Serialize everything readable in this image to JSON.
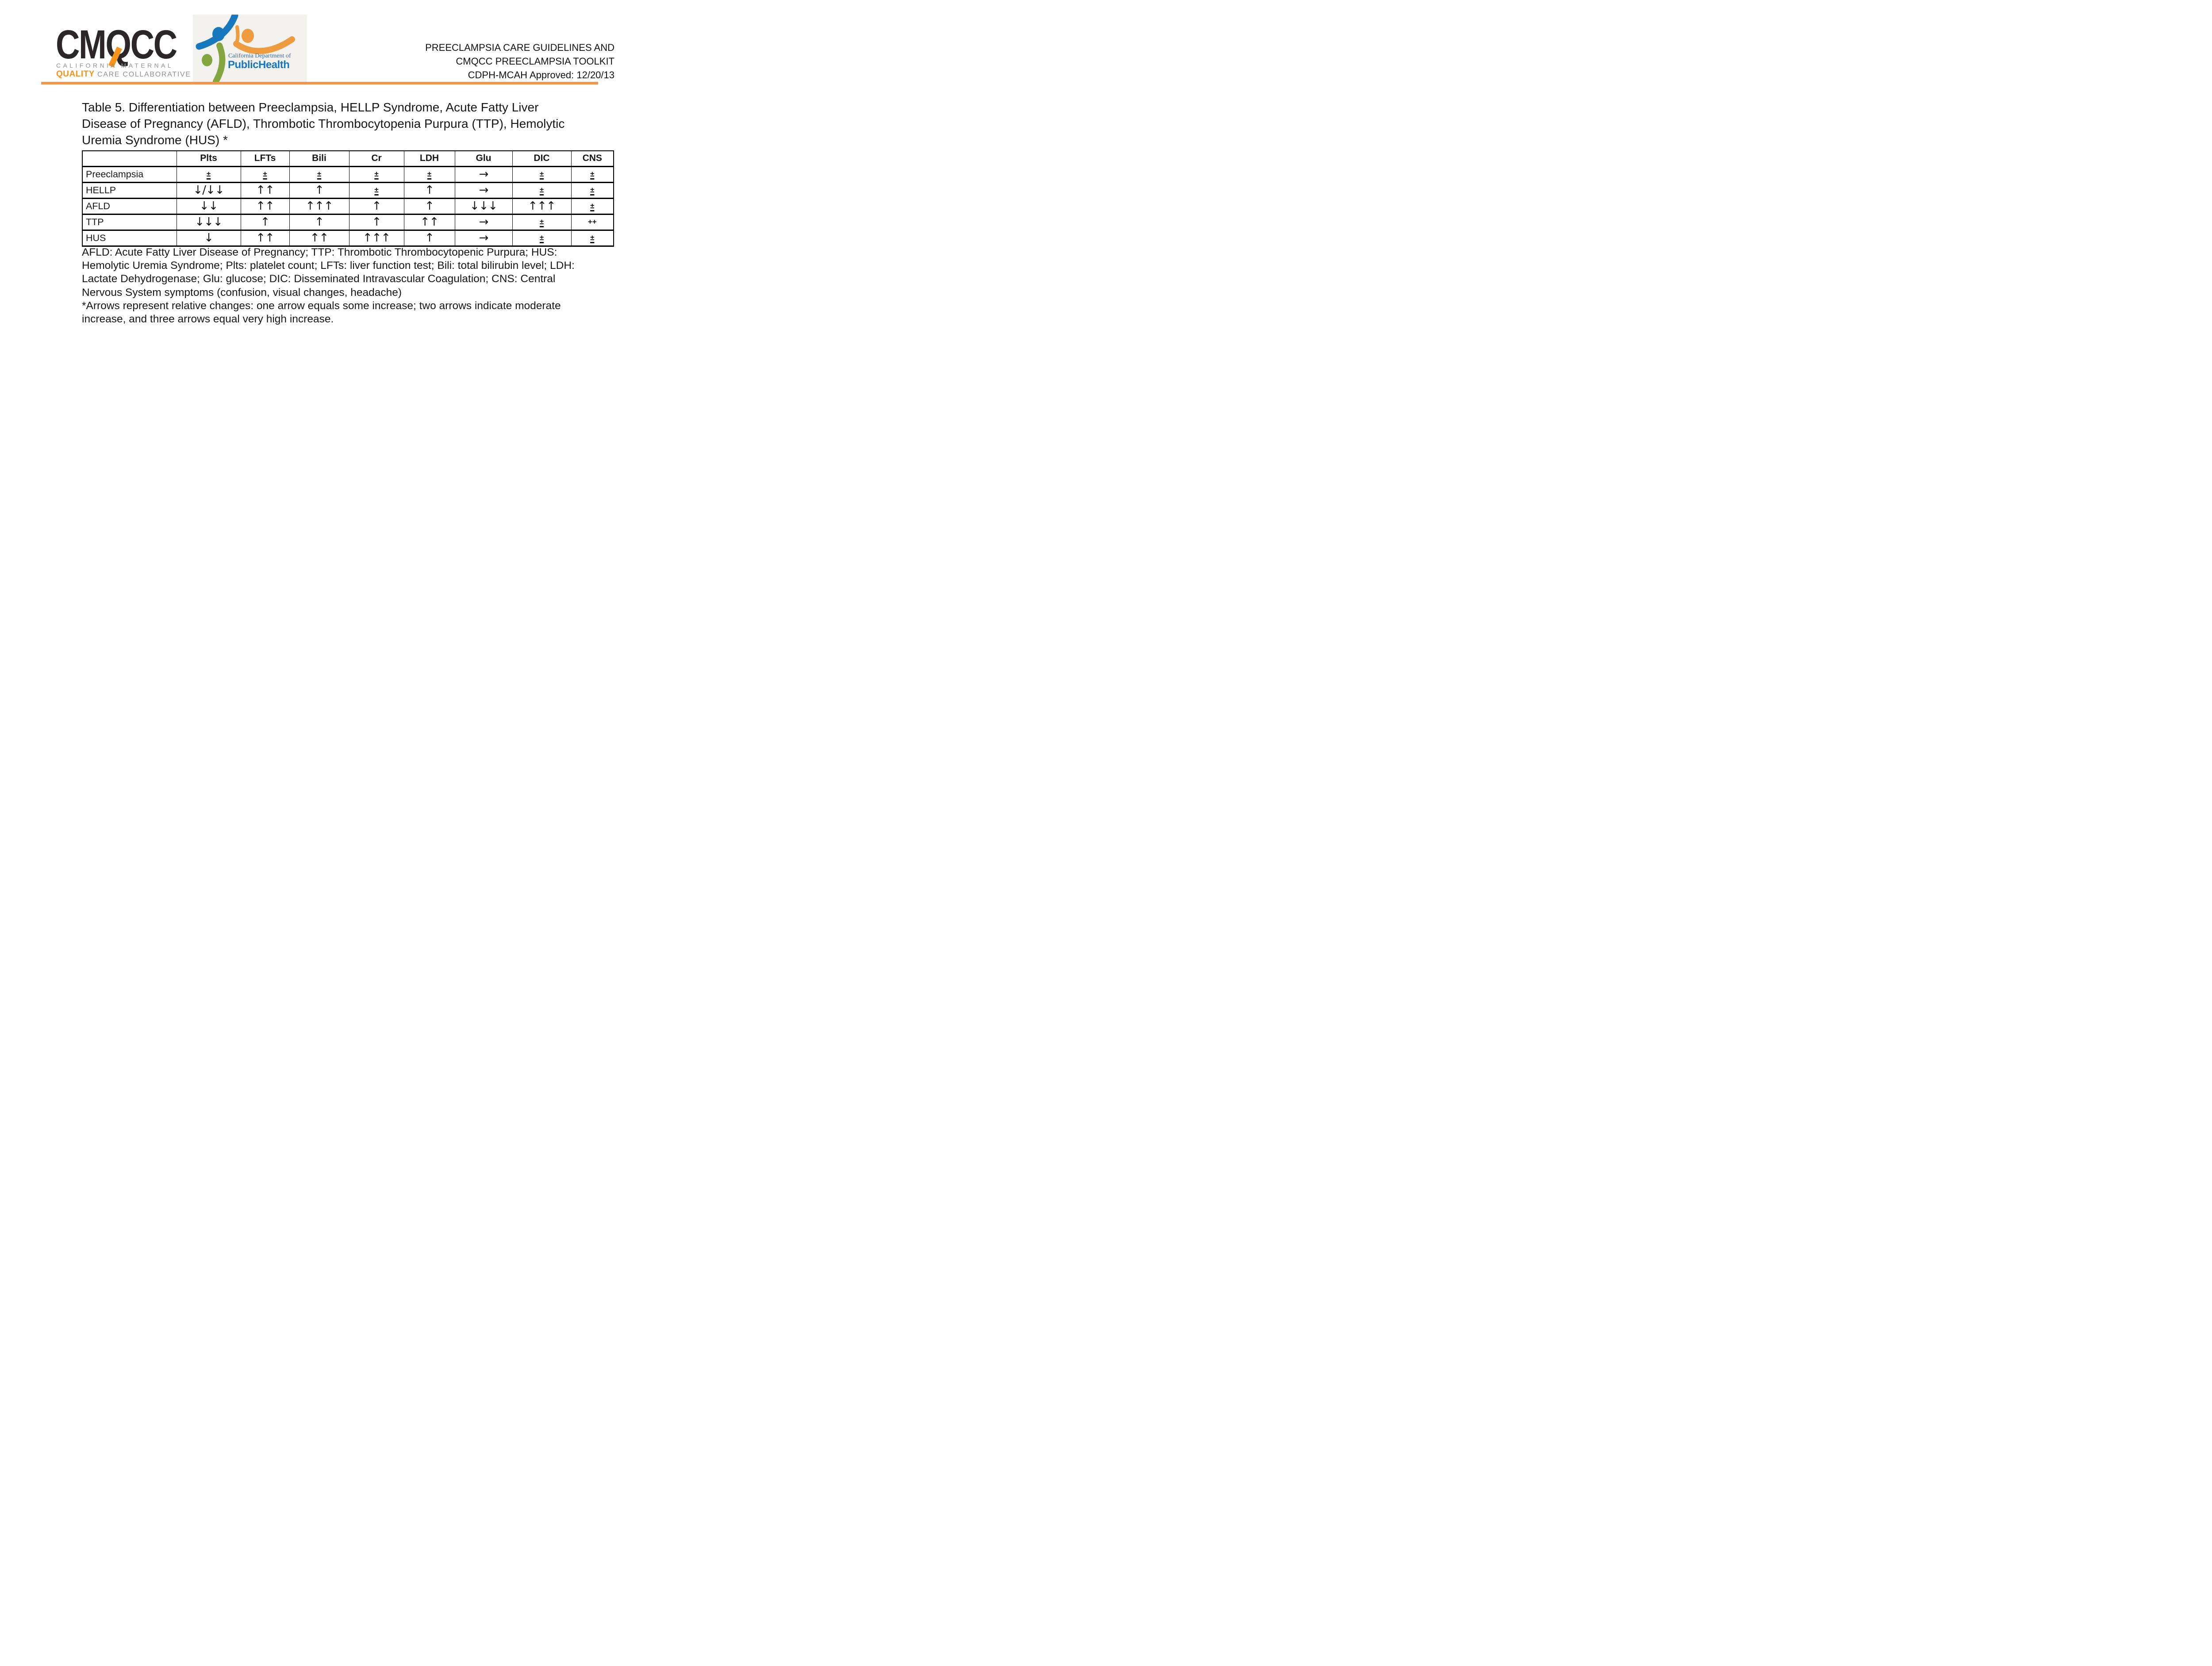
{
  "header": {
    "cmqcc_logo": {
      "wordmark": "CMQCC",
      "tagline_line1": "CALIFORNIA MATERNAL",
      "tagline_quality": "QUALITY",
      "tagline_rest": " CARE COLLABORATIVE",
      "accent_orange": "#F7941E",
      "wordmark_color": "#2B2728",
      "tagline_gray": "#8E9194"
    },
    "cdph_logo": {
      "line1": "California Department of",
      "line2": "PublicHealth",
      "blue": "#1778BE",
      "orange": "#EE9C3F",
      "green": "#85A63F",
      "box_bg": "#F3F2EF"
    },
    "title_lines": {
      "0": "PREECLAMPSIA CARE GUIDELINES AND",
      "1": "CMQCC PREECLAMPSIA TOOLKIT",
      "2": "CDPH-MCAH Approved: 12/20/13"
    },
    "rule_color": "#F5944A"
  },
  "document": {
    "table_title_lines": {
      "0": "Table 5. Differentiation between Preeclampsia, HELLP Syndrome, Acute Fatty Liver",
      "1": "Disease of Pregnancy (AFLD), Thrombotic Thrombocytopenia Purpura (TTP), Hemolytic",
      "2": "Uremia Syndrome (HUS) *"
    },
    "table": {
      "columns": [
        "",
        "Plts",
        "LFTs",
        "Bili",
        "Cr",
        "LDH",
        "Glu",
        "DIC",
        "CNS"
      ],
      "rows": [
        {
          "label": "Preeclampsia",
          "cells": [
            "±",
            "±",
            "±",
            "±",
            "±",
            "→",
            "±",
            "±"
          ]
        },
        {
          "label": "HELLP",
          "cells": [
            "↓/↓↓",
            "↑↑",
            "↑",
            "±",
            "↑",
            "→",
            "±",
            "±"
          ]
        },
        {
          "label": "AFLD",
          "cells": [
            "↓↓",
            "↑↑",
            "↑↑↑",
            "↑",
            "↑",
            "↓↓↓",
            "↑↑↑",
            "±"
          ]
        },
        {
          "label": "TTP",
          "cells": [
            "↓↓↓",
            "↑",
            "↑",
            "↑",
            "↑↑",
            "→",
            "±",
            "++"
          ]
        },
        {
          "label": "HUS",
          "cells": [
            "↓",
            "↑↑",
            "↑↑",
            "↑↑↑",
            "↑",
            "→",
            "±",
            "±"
          ]
        }
      ]
    },
    "footnote_lines": {
      "0": "AFLD: Acute Fatty Liver Disease of Pregnancy; TTP: Thrombotic Thrombocytopenic Purpura; HUS:",
      "1": "Hemolytic Uremia Syndrome; Plts: platelet count; LFTs: liver function test; Bili: total bilirubin level; LDH:",
      "2": "Lactate Dehydrogenase; Glu: glucose; DIC: Disseminated Intravascular Coagulation; CNS: Central",
      "3": "Nervous System symptoms (confusion, visual changes, headache)",
      "4": "*Arrows represent relative changes: one arrow equals some increase; two arrows indicate moderate",
      "5": "increase, and three arrows equal very high increase."
    }
  }
}
